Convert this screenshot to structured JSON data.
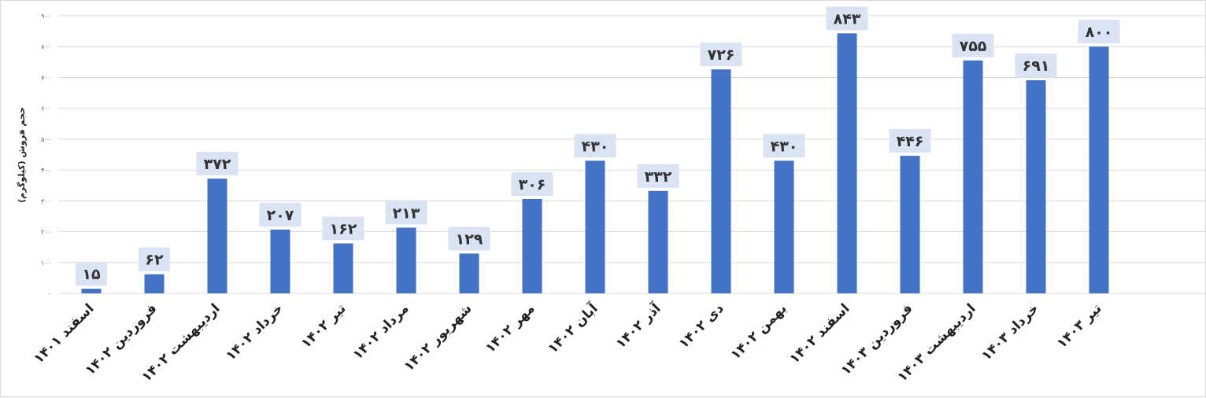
{
  "chart_data": {
    "type": "bar",
    "title": "",
    "xlabel": "",
    "ylabel": "حجم فروش (کیلوگرم)",
    "ylim": [
      0,
      900
    ],
    "yticks": [
      0,
      100,
      200,
      300,
      400,
      500,
      600,
      700,
      800,
      900
    ],
    "ytick_labels": [
      "۰",
      "۱۰۰",
      "۲۰۰",
      "۳۰۰",
      "۴۰۰",
      "۵۰۰",
      "۶۰۰",
      "۷۰۰",
      "۸۰۰",
      "۹۰۰"
    ],
    "grid": true,
    "legend": "none",
    "categories": [
      "اسفند ۱۴۰۱",
      "فروردین ۱۴۰۲",
      "اردیبهشت ۱۴۰۲",
      "خرداد ۱۴۰۲",
      "تیر ۱۴۰۲",
      "مرداد ۱۴۰۲",
      "شهریور ۱۴۰۲",
      "مهر ۱۴۰۲",
      "آبان ۱۴۰۲",
      "آذر ۱۴۰۲",
      "دی ۱۴۰۲",
      "بهمن ۱۴۰۲",
      "اسفند ۱۴۰۲",
      "فروردین ۱۴۰۳",
      "اردیبهشت ۱۴۰۳",
      "خرداد ۱۴۰۳",
      "تیر ۱۴۰۳"
    ],
    "values": [
      15,
      62,
      372,
      207,
      162,
      213,
      129,
      306,
      430,
      332,
      726,
      430,
      843,
      446,
      755,
      691,
      800
    ],
    "value_labels": [
      "۱۵",
      "۶۲",
      "۳۷۲",
      "۲۰۷",
      "۱۶۲",
      "۲۱۳",
      "۱۲۹",
      "۳۰۶",
      "۴۳۰",
      "۳۳۲",
      "۷۲۶",
      "۴۳۰",
      "۸۴۳",
      "۴۴۶",
      "۷۵۵",
      "۶۹۱",
      "۸۰۰"
    ],
    "colors": {
      "bar": "#4472c4",
      "label_box": "#dae3f3",
      "grid": "#d9d9d9"
    }
  }
}
